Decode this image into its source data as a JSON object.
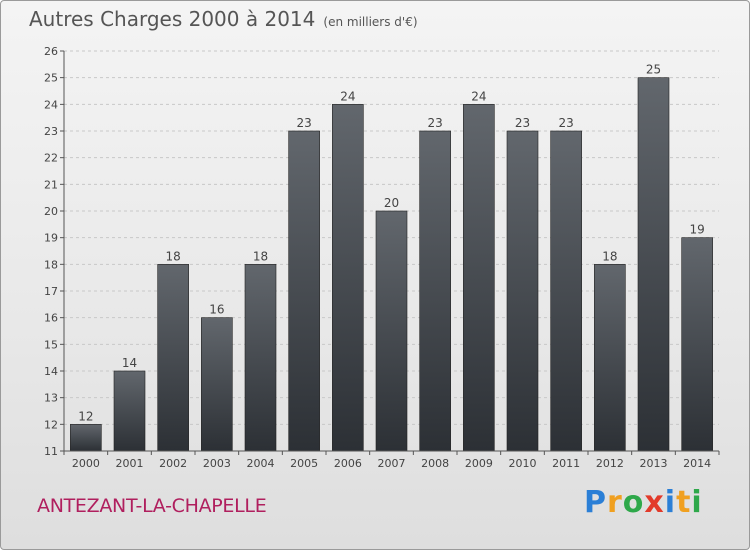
{
  "title": "Autres Charges 2000 à 2014",
  "subtitle": "(en milliers d'€)",
  "commune": "ANTEZANT-LA-CHAPELLE",
  "logo": {
    "text": "Proxiti",
    "letters": [
      {
        "char": "P",
        "color": "#2b7fd6"
      },
      {
        "char": "r",
        "color": "#f0a020"
      },
      {
        "char": "o",
        "color": "#2ea84a"
      },
      {
        "char": "x",
        "color": "#e23a2a"
      },
      {
        "char": "i",
        "color": "#2b7fd6"
      },
      {
        "char": "t",
        "color": "#f0a020"
      },
      {
        "char": "i",
        "color": "#2ea84a"
      }
    ]
  },
  "chart_data": {
    "type": "bar",
    "title": "Autres Charges 2000 à 2014",
    "subtitle": "(en milliers d'€)",
    "categories": [
      "2000",
      "2001",
      "2002",
      "2003",
      "2004",
      "2005",
      "2006",
      "2007",
      "2008",
      "2009",
      "2010",
      "2011",
      "2012",
      "2013",
      "2014"
    ],
    "values": [
      12,
      14,
      18,
      16,
      18,
      23,
      24,
      20,
      23,
      24,
      23,
      23,
      18,
      25,
      19
    ],
    "ylim": [
      11,
      26
    ],
    "yticks": [
      11,
      12,
      13,
      14,
      15,
      16,
      17,
      18,
      19,
      20,
      21,
      22,
      23,
      24,
      25,
      26
    ],
    "grid": true,
    "xlabel": "",
    "ylabel": "",
    "bar_color": "#3d4248"
  }
}
